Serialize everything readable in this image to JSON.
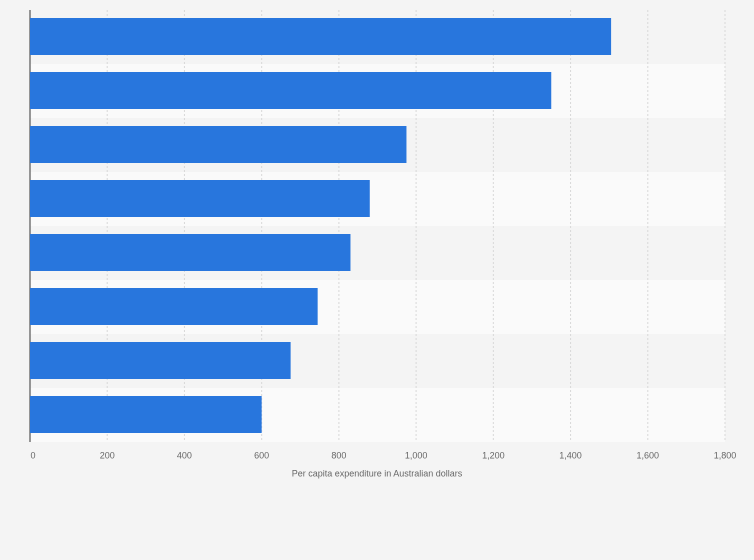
{
  "chart_data": {
    "type": "bar",
    "orientation": "horizontal",
    "x_label": "Per capita expenditure in Australian dollars",
    "categories": [
      null,
      null,
      null,
      null,
      null,
      null,
      null,
      null
    ],
    "values": [
      1505,
      1350,
      975,
      880,
      830,
      745,
      675,
      600
    ],
    "color": "#2876dd",
    "xlim": [
      0,
      1800
    ],
    "xticks": [
      0,
      200,
      400,
      600,
      800,
      {
        "value": 1000,
        "label": "1,000"
      },
      {
        "value": 1200,
        "label": "1,200"
      },
      {
        "value": 1400,
        "label": "1,400"
      },
      {
        "value": 1600,
        "label": "1,600"
      },
      {
        "value": 1800,
        "label": "1,800"
      }
    ],
    "grid": true
  }
}
